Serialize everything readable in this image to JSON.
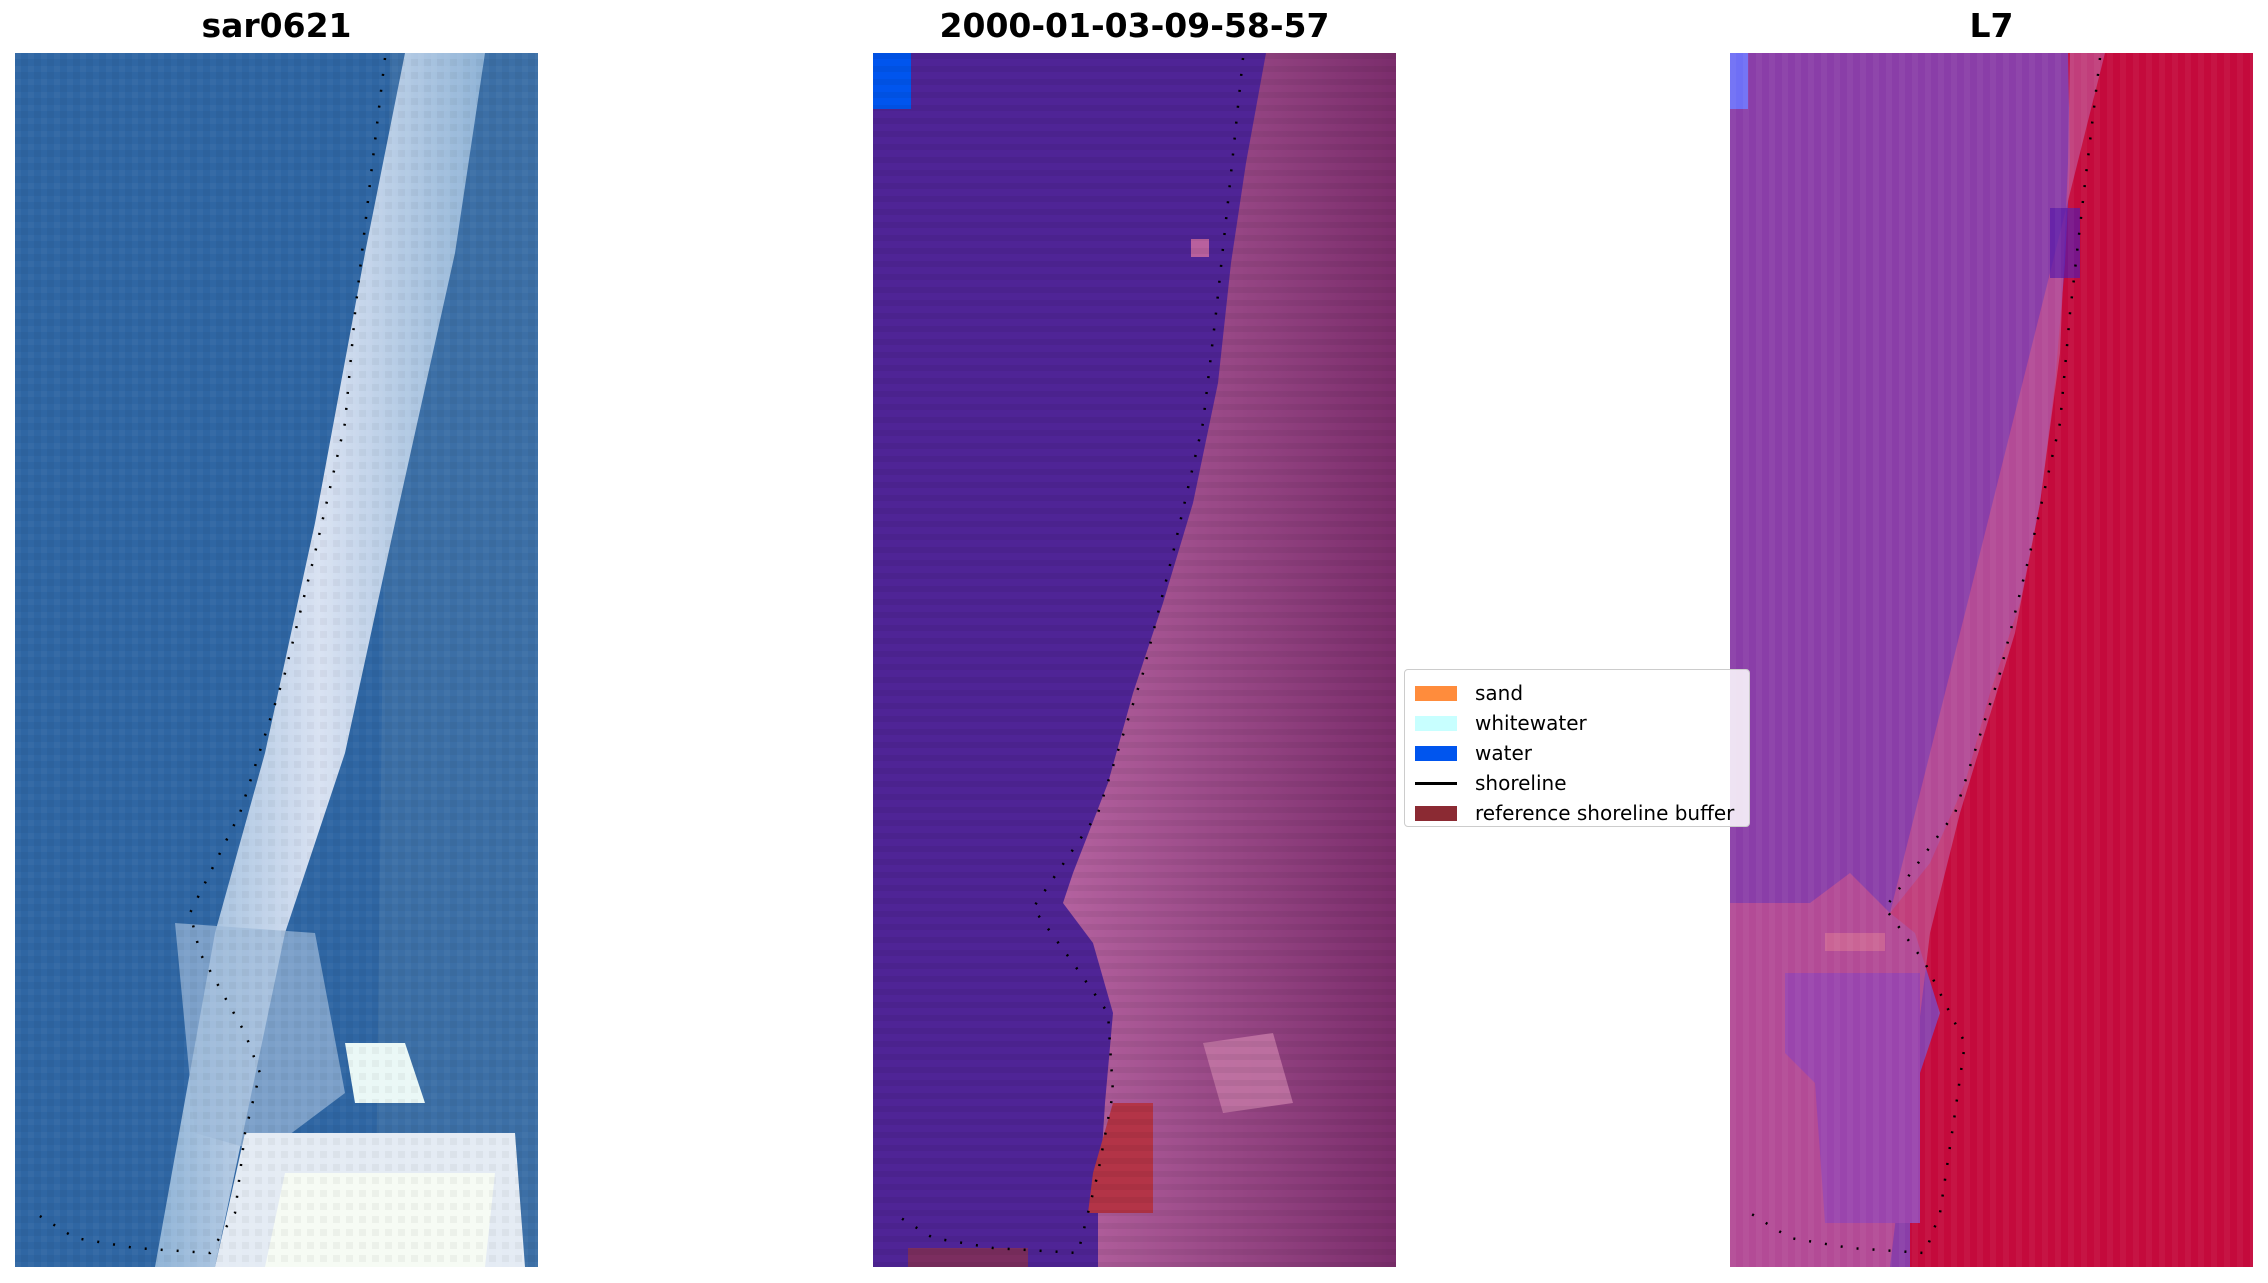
{
  "panels": [
    {
      "title": "sar0621"
    },
    {
      "title": "2000-01-03-09-58-57"
    },
    {
      "title": "L7"
    }
  ],
  "legend": {
    "items": [
      {
        "label": "sand",
        "color": "#ff8c3c",
        "kind": "patch"
      },
      {
        "label": "whitewater",
        "color": "#c8ffff",
        "kind": "patch"
      },
      {
        "label": "water",
        "color": "#0055ee",
        "kind": "patch"
      },
      {
        "label": "shoreline",
        "color": "#000000",
        "kind": "line"
      },
      {
        "label": "reference shoreline buffer",
        "color": "#8b2a33",
        "kind": "patch"
      }
    ]
  },
  "colors": {
    "ocean_rgb": "#2f66a3",
    "surf_rgb": "#c8d8ee",
    "classified_water": "#4f2496",
    "classified_land": "#a04f8e",
    "falsecolor_water": "#8a3ea8",
    "falsecolor_land": "#c40a3c"
  }
}
